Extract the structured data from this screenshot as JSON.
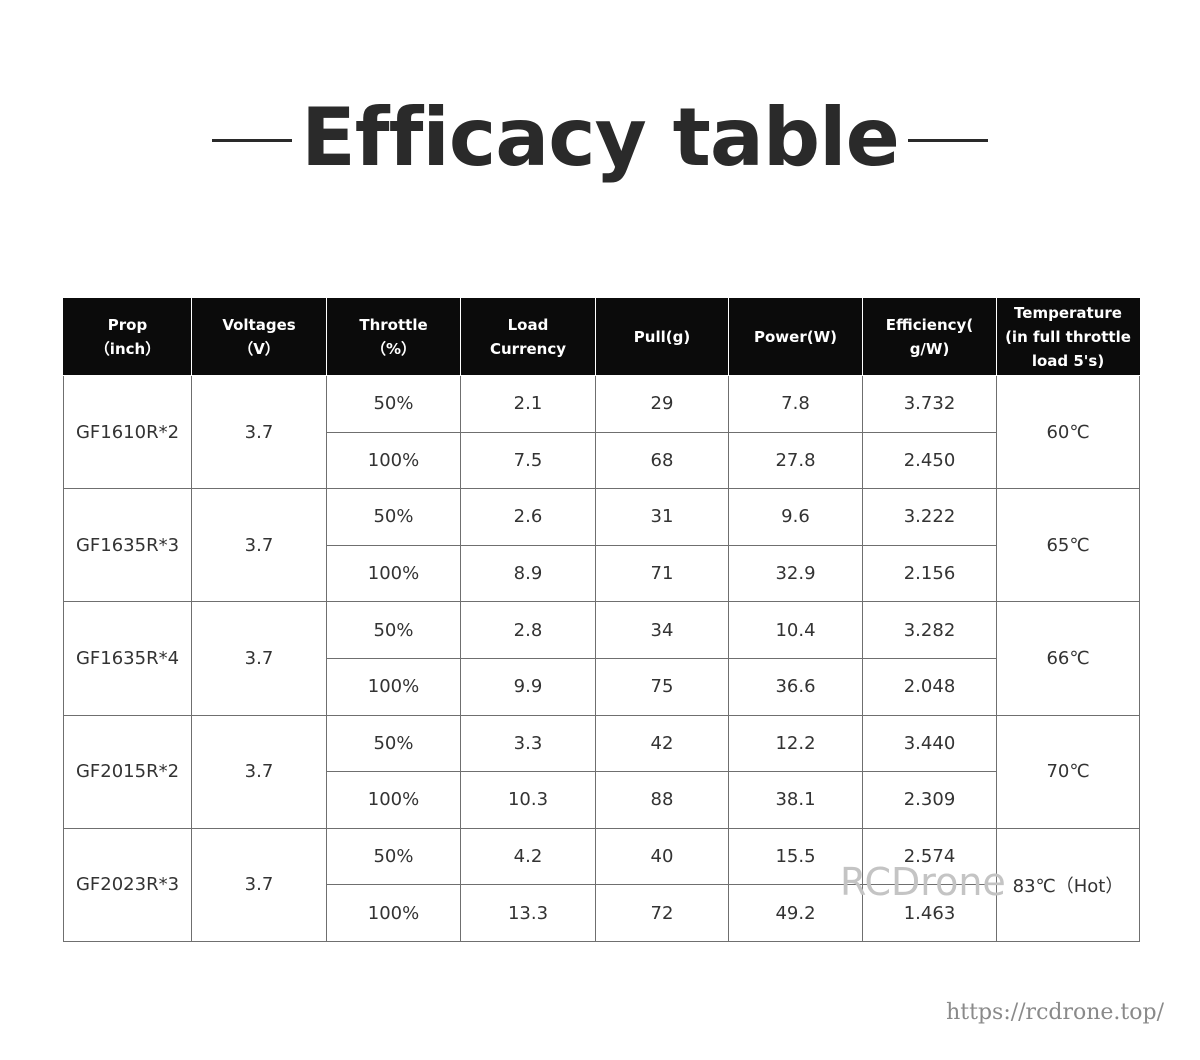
{
  "title": "Efficacy table",
  "headers": [
    [
      "Prop",
      "（inch）"
    ],
    [
      "Voltages",
      "（V）"
    ],
    [
      "Throttle",
      "（%）"
    ],
    [
      "Load",
      "Currency"
    ],
    [
      "Pull(g)"
    ],
    [
      "Power(W)"
    ],
    [
      "Efficiency(",
      "g/W)"
    ],
    [
      "Temperature",
      "(in full throttle",
      "load 5's)"
    ]
  ],
  "groups": [
    {
      "prop": "GF1610R*2",
      "voltage": "3.7",
      "temperature": "60℃",
      "rows": [
        {
          "throttle": "50%",
          "current": "2.1",
          "pull": "29",
          "power": "7.8",
          "efficiency": "3.732"
        },
        {
          "throttle": "100%",
          "current": "7.5",
          "pull": "68",
          "power": "27.8",
          "efficiency": "2.450"
        }
      ]
    },
    {
      "prop": "GF1635R*3",
      "voltage": "3.7",
      "temperature": "65℃",
      "rows": [
        {
          "throttle": "50%",
          "current": "2.6",
          "pull": "31",
          "power": "9.6",
          "efficiency": "3.222"
        },
        {
          "throttle": "100%",
          "current": "8.9",
          "pull": "71",
          "power": "32.9",
          "efficiency": "2.156"
        }
      ]
    },
    {
      "prop": "GF1635R*4",
      "voltage": "3.7",
      "temperature": "66℃",
      "rows": [
        {
          "throttle": "50%",
          "current": "2.8",
          "pull": "34",
          "power": "10.4",
          "efficiency": "3.282"
        },
        {
          "throttle": "100%",
          "current": "9.9",
          "pull": "75",
          "power": "36.6",
          "efficiency": "2.048"
        }
      ]
    },
    {
      "prop": "GF2015R*2",
      "voltage": "3.7",
      "temperature": "70℃",
      "rows": [
        {
          "throttle": "50%",
          "current": "3.3",
          "pull": "42",
          "power": "12.2",
          "efficiency": "3.440"
        },
        {
          "throttle": "100%",
          "current": "10.3",
          "pull": "88",
          "power": "38.1",
          "efficiency": "2.309"
        }
      ]
    },
    {
      "prop": "GF2023R*3",
      "voltage": "3.7",
      "temperature": "83℃（Hot）",
      "rows": [
        {
          "throttle": "50%",
          "current": "4.2",
          "pull": "40",
          "power": "15.5",
          "efficiency": "2.574"
        },
        {
          "throttle": "100%",
          "current": "13.3",
          "pull": "72",
          "power": "49.2",
          "efficiency": "1.463"
        }
      ]
    }
  ],
  "watermark": "RCDrone",
  "url": "https://rcdrone.top/"
}
